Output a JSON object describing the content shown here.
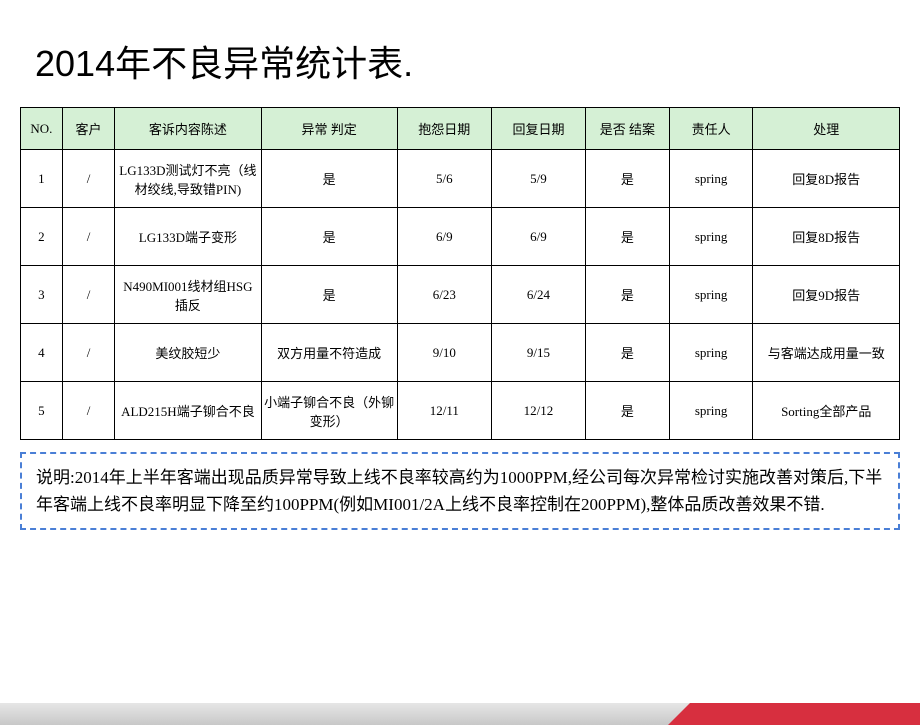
{
  "title": "2014年不良异常统计表.",
  "table": {
    "header_bg": "#d5f0d5",
    "border_color": "#000000",
    "columns": [
      "NO.",
      "客户",
      "客诉内容陈述",
      "异常 判定",
      "抱怨日期",
      "回复日期",
      "是否 结案",
      "责任人",
      "处理"
    ],
    "rows": [
      [
        "1",
        "/",
        "LG133D测试灯不亮（线材绞线,导致错PIN)",
        "是",
        "5/6",
        "5/9",
        "是",
        "spring",
        "回复8D报告"
      ],
      [
        "2",
        "/",
        "LG133D端子变形",
        "是",
        "6/9",
        "6/9",
        "是",
        "spring",
        "回复8D报告"
      ],
      [
        "3",
        "/",
        "N490MI001线材组HSG插反",
        "是",
        "6/23",
        "6/24",
        "是",
        "spring",
        "回复9D报告"
      ],
      [
        "4",
        "/",
        "美纹胶短少",
        "双方用量不符造成",
        "9/10",
        "9/15",
        "是",
        "spring",
        "与客端达成用量一致"
      ],
      [
        "5",
        "/",
        "ALD215H端子铆合不良",
        "小端子铆合不良（外铆变形）",
        "12/11",
        "12/12",
        "是",
        "spring",
        "Sorting全部产品"
      ]
    ]
  },
  "note": "说明:2014年上半年客端出现品质异常导致上线不良率较高约为1000PPM,经公司每次异常检讨实施改善对策后,下半年客端上线不良率明显下降至约100PPM(例如MI001/2A上线不良率控制在200PPM),整体品质改善效果不错.",
  "footer": {
    "gray_color": "#d5d5d5",
    "red_color": "#d72f3f"
  }
}
